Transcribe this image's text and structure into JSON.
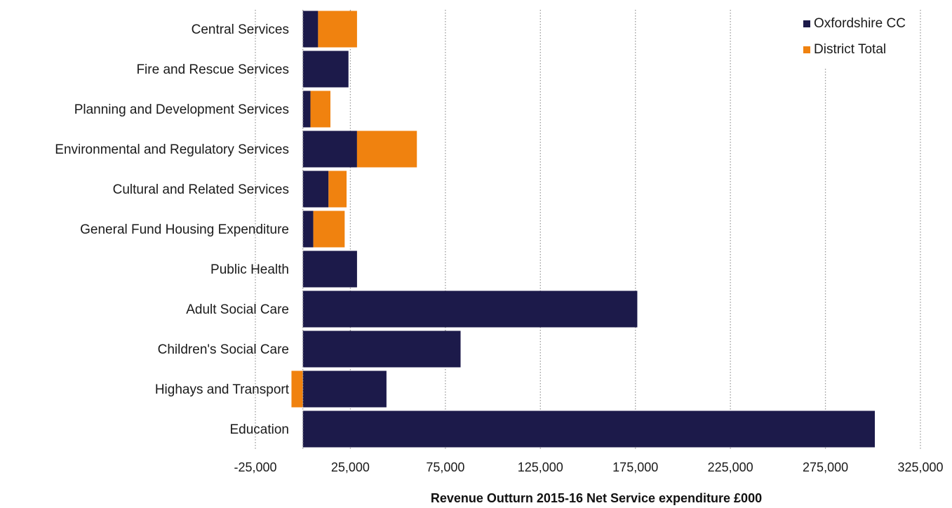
{
  "chart_data": {
    "type": "bar",
    "orientation": "horizontal",
    "stacked": true,
    "title": "",
    "xlabel": "Revenue Outturn  2015-16 Net Service expenditure   £000",
    "ylabel": "",
    "xlim": [
      -25000,
      325000
    ],
    "xticks": [
      -25000,
      25000,
      75000,
      125000,
      175000,
      225000,
      275000,
      325000
    ],
    "xtick_labels": [
      "-25,000",
      "25,000",
      "75,000",
      "125,000",
      "175,000",
      "225,000",
      "275,000",
      "325,000"
    ],
    "grid": "vertical-dotted",
    "legend_position": "top-right",
    "categories": [
      "Central Services",
      "Fire and Rescue Services",
      "Planning and Development Services",
      "Environmental and Regulatory Services",
      "Cultural and Related Services",
      "General Fund Housing Expenditure",
      "Public Health",
      "Adult Social Care",
      "Children's Social Care",
      "Highays and Transport",
      "Education"
    ],
    "series": [
      {
        "name": "Oxfordshire CC",
        "color": "#1c1a4a",
        "values": [
          8000,
          24000,
          4000,
          28500,
          13500,
          5500,
          28500,
          176000,
          83000,
          44000,
          301000
        ]
      },
      {
        "name": "District Total",
        "color": "#f0820f",
        "values": [
          20500,
          0,
          10500,
          31500,
          9500,
          16500,
          0,
          0,
          0,
          -6000,
          0
        ]
      }
    ]
  }
}
